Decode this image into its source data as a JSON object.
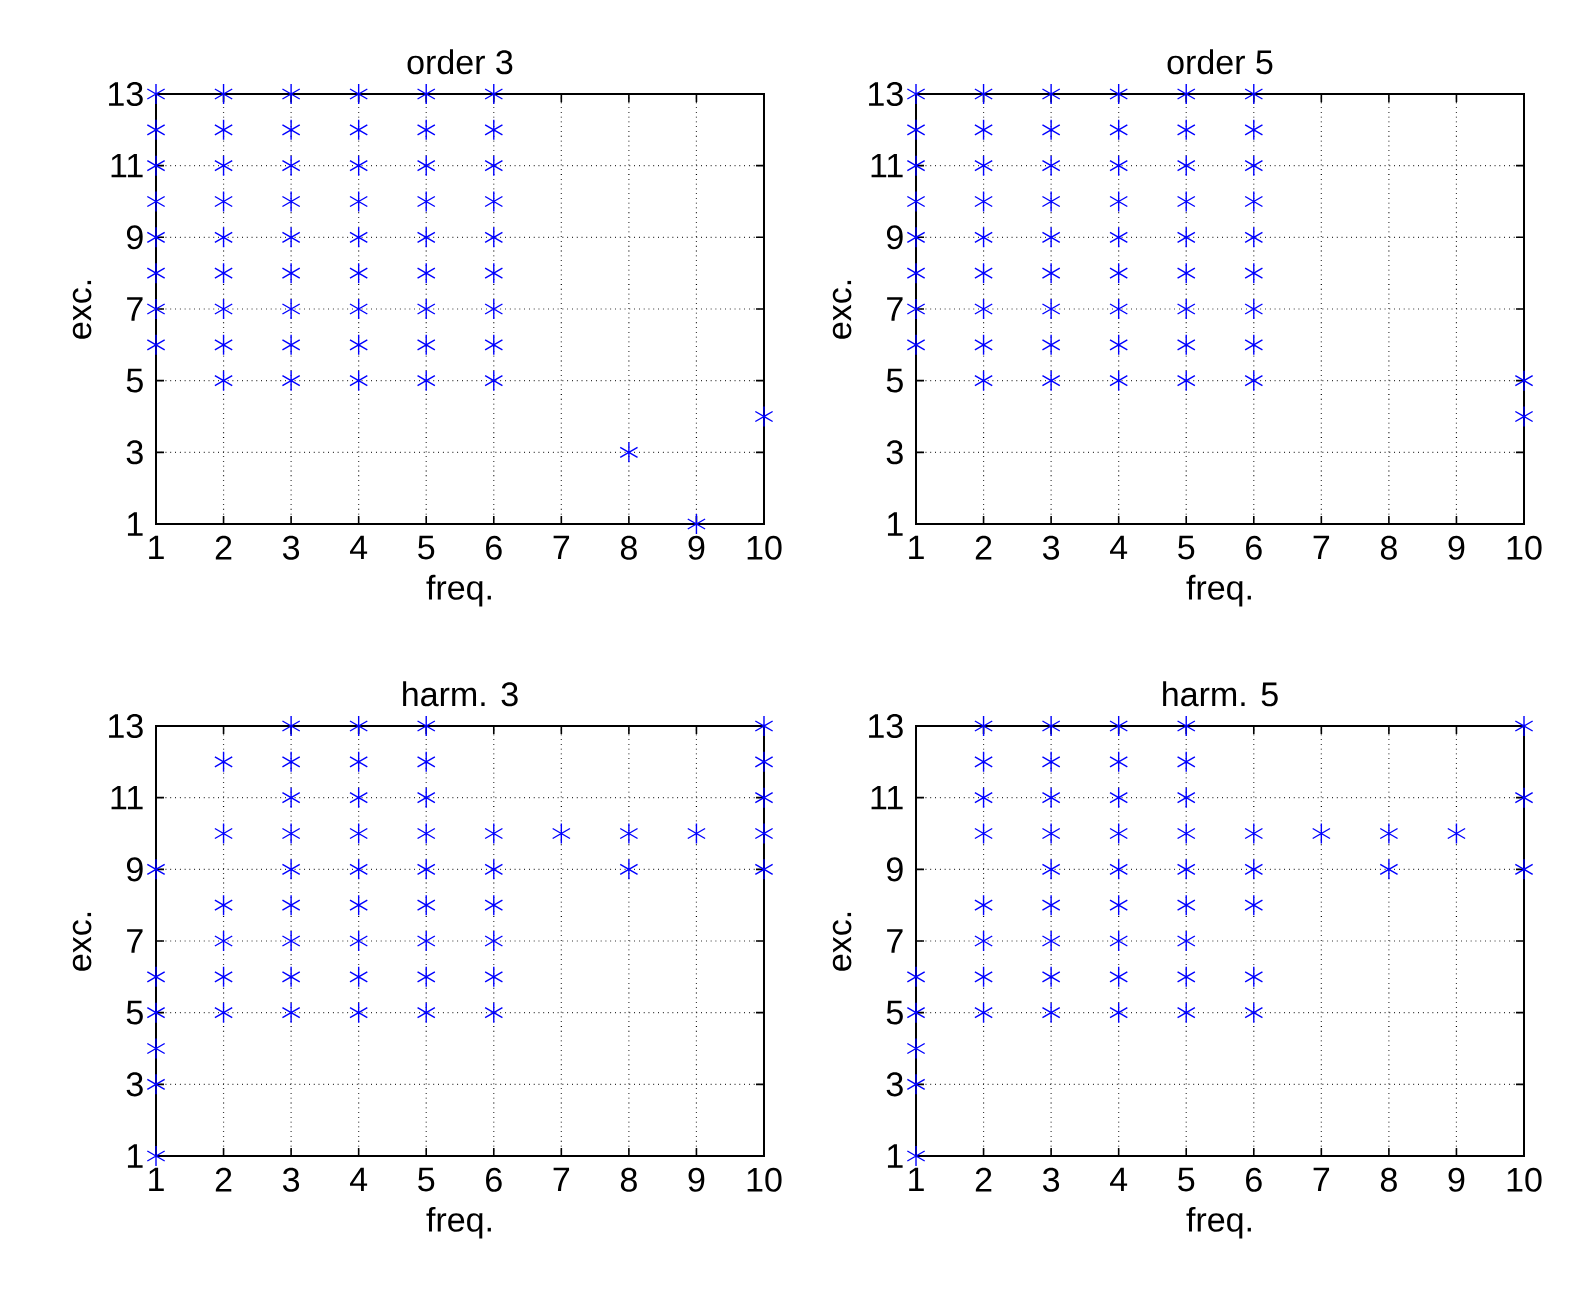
{
  "chart_data": [
    {
      "type": "scatter",
      "title": "order 3",
      "xlabel": "freq.",
      "ylabel": "exc.",
      "xlim": [
        1,
        10
      ],
      "ylim": [
        1,
        13
      ],
      "xticks": [
        1,
        2,
        3,
        4,
        5,
        6,
        7,
        8,
        9,
        10
      ],
      "yticks": [
        1,
        3,
        5,
        7,
        9,
        11,
        13
      ],
      "grid": true,
      "marker": "cross",
      "color": "#0000ff",
      "x": [
        1,
        1,
        1,
        1,
        1,
        1,
        1,
        1,
        2,
        2,
        2,
        2,
        2,
        2,
        2,
        2,
        2,
        3,
        3,
        3,
        3,
        3,
        3,
        3,
        3,
        3,
        4,
        4,
        4,
        4,
        4,
        4,
        4,
        4,
        4,
        5,
        5,
        5,
        5,
        5,
        5,
        5,
        5,
        5,
        6,
        6,
        6,
        6,
        6,
        6,
        6,
        6,
        6,
        8,
        9,
        10
      ],
      "values": [
        6,
        7,
        8,
        9,
        10,
        11,
        12,
        13,
        5,
        6,
        7,
        8,
        9,
        10,
        11,
        12,
        13,
        5,
        6,
        7,
        8,
        9,
        10,
        11,
        12,
        13,
        5,
        6,
        7,
        8,
        9,
        10,
        11,
        12,
        13,
        5,
        6,
        7,
        8,
        9,
        10,
        11,
        12,
        13,
        5,
        6,
        7,
        8,
        9,
        10,
        11,
        12,
        13,
        3,
        1,
        4
      ]
    },
    {
      "type": "scatter",
      "title": "order 5",
      "xlabel": "freq.",
      "ylabel": "exc.",
      "xlim": [
        1,
        10
      ],
      "ylim": [
        1,
        13
      ],
      "xticks": [
        1,
        2,
        3,
        4,
        5,
        6,
        7,
        8,
        9,
        10
      ],
      "yticks": [
        1,
        3,
        5,
        7,
        9,
        11,
        13
      ],
      "grid": true,
      "marker": "cross",
      "color": "#0000ff",
      "x": [
        1,
        1,
        1,
        1,
        1,
        1,
        1,
        1,
        2,
        2,
        2,
        2,
        2,
        2,
        2,
        2,
        2,
        3,
        3,
        3,
        3,
        3,
        3,
        3,
        3,
        3,
        4,
        4,
        4,
        4,
        4,
        4,
        4,
        4,
        4,
        5,
        5,
        5,
        5,
        5,
        5,
        5,
        5,
        5,
        6,
        6,
        6,
        6,
        6,
        6,
        6,
        6,
        6,
        10,
        10
      ],
      "values": [
        6,
        7,
        8,
        9,
        10,
        11,
        12,
        13,
        5,
        6,
        7,
        8,
        9,
        10,
        11,
        12,
        13,
        5,
        6,
        7,
        8,
        9,
        10,
        11,
        12,
        13,
        5,
        6,
        7,
        8,
        9,
        10,
        11,
        12,
        13,
        5,
        6,
        7,
        8,
        9,
        10,
        11,
        12,
        13,
        5,
        6,
        7,
        8,
        9,
        10,
        11,
        12,
        13,
        4,
        5
      ]
    },
    {
      "type": "scatter",
      "title": "harm. 3",
      "xlabel": "freq.",
      "ylabel": "exc.",
      "xlim": [
        1,
        10
      ],
      "ylim": [
        1,
        13
      ],
      "xticks": [
        1,
        2,
        3,
        4,
        5,
        6,
        7,
        8,
        9,
        10
      ],
      "yticks": [
        1,
        3,
        5,
        7,
        9,
        11,
        13
      ],
      "grid": true,
      "marker": "cross",
      "color": "#0000ff",
      "x": [
        1,
        1,
        1,
        1,
        1,
        1,
        2,
        2,
        2,
        2,
        2,
        2,
        3,
        3,
        3,
        3,
        3,
        3,
        3,
        3,
        3,
        4,
        4,
        4,
        4,
        4,
        4,
        4,
        4,
        4,
        5,
        5,
        5,
        5,
        5,
        5,
        5,
        5,
        5,
        6,
        6,
        6,
        6,
        6,
        6,
        7,
        8,
        8,
        9,
        10,
        10,
        10,
        10,
        10
      ],
      "values": [
        1,
        3,
        4,
        5,
        6,
        9,
        5,
        6,
        7,
        8,
        10,
        12,
        5,
        6,
        7,
        8,
        9,
        10,
        11,
        12,
        13,
        5,
        6,
        7,
        8,
        9,
        10,
        11,
        12,
        13,
        5,
        6,
        7,
        8,
        9,
        10,
        11,
        12,
        13,
        5,
        6,
        7,
        8,
        9,
        10,
        10,
        9,
        10,
        10,
        9,
        10,
        11,
        12,
        13
      ]
    },
    {
      "type": "scatter",
      "title": "harm. 5",
      "xlabel": "freq.",
      "ylabel": "exc.",
      "xlim": [
        1,
        10
      ],
      "ylim": [
        1,
        13
      ],
      "xticks": [
        1,
        2,
        3,
        4,
        5,
        6,
        7,
        8,
        9,
        10
      ],
      "yticks": [
        1,
        3,
        5,
        7,
        9,
        11,
        13
      ],
      "grid": true,
      "marker": "cross",
      "color": "#0000ff",
      "x": [
        1,
        1,
        1,
        1,
        1,
        2,
        2,
        2,
        2,
        2,
        2,
        2,
        2,
        3,
        3,
        3,
        3,
        3,
        3,
        3,
        3,
        3,
        4,
        4,
        4,
        4,
        4,
        4,
        4,
        4,
        4,
        5,
        5,
        5,
        5,
        5,
        5,
        5,
        5,
        5,
        6,
        6,
        6,
        6,
        6,
        7,
        8,
        8,
        9,
        10,
        10,
        10
      ],
      "values": [
        1,
        3,
        4,
        5,
        6,
        5,
        6,
        7,
        8,
        10,
        11,
        12,
        13,
        5,
        6,
        7,
        8,
        9,
        10,
        11,
        12,
        13,
        5,
        6,
        7,
        8,
        9,
        10,
        11,
        12,
        13,
        5,
        6,
        7,
        8,
        9,
        10,
        11,
        12,
        13,
        5,
        6,
        8,
        9,
        10,
        10,
        9,
        10,
        10,
        9,
        11,
        13
      ]
    }
  ]
}
